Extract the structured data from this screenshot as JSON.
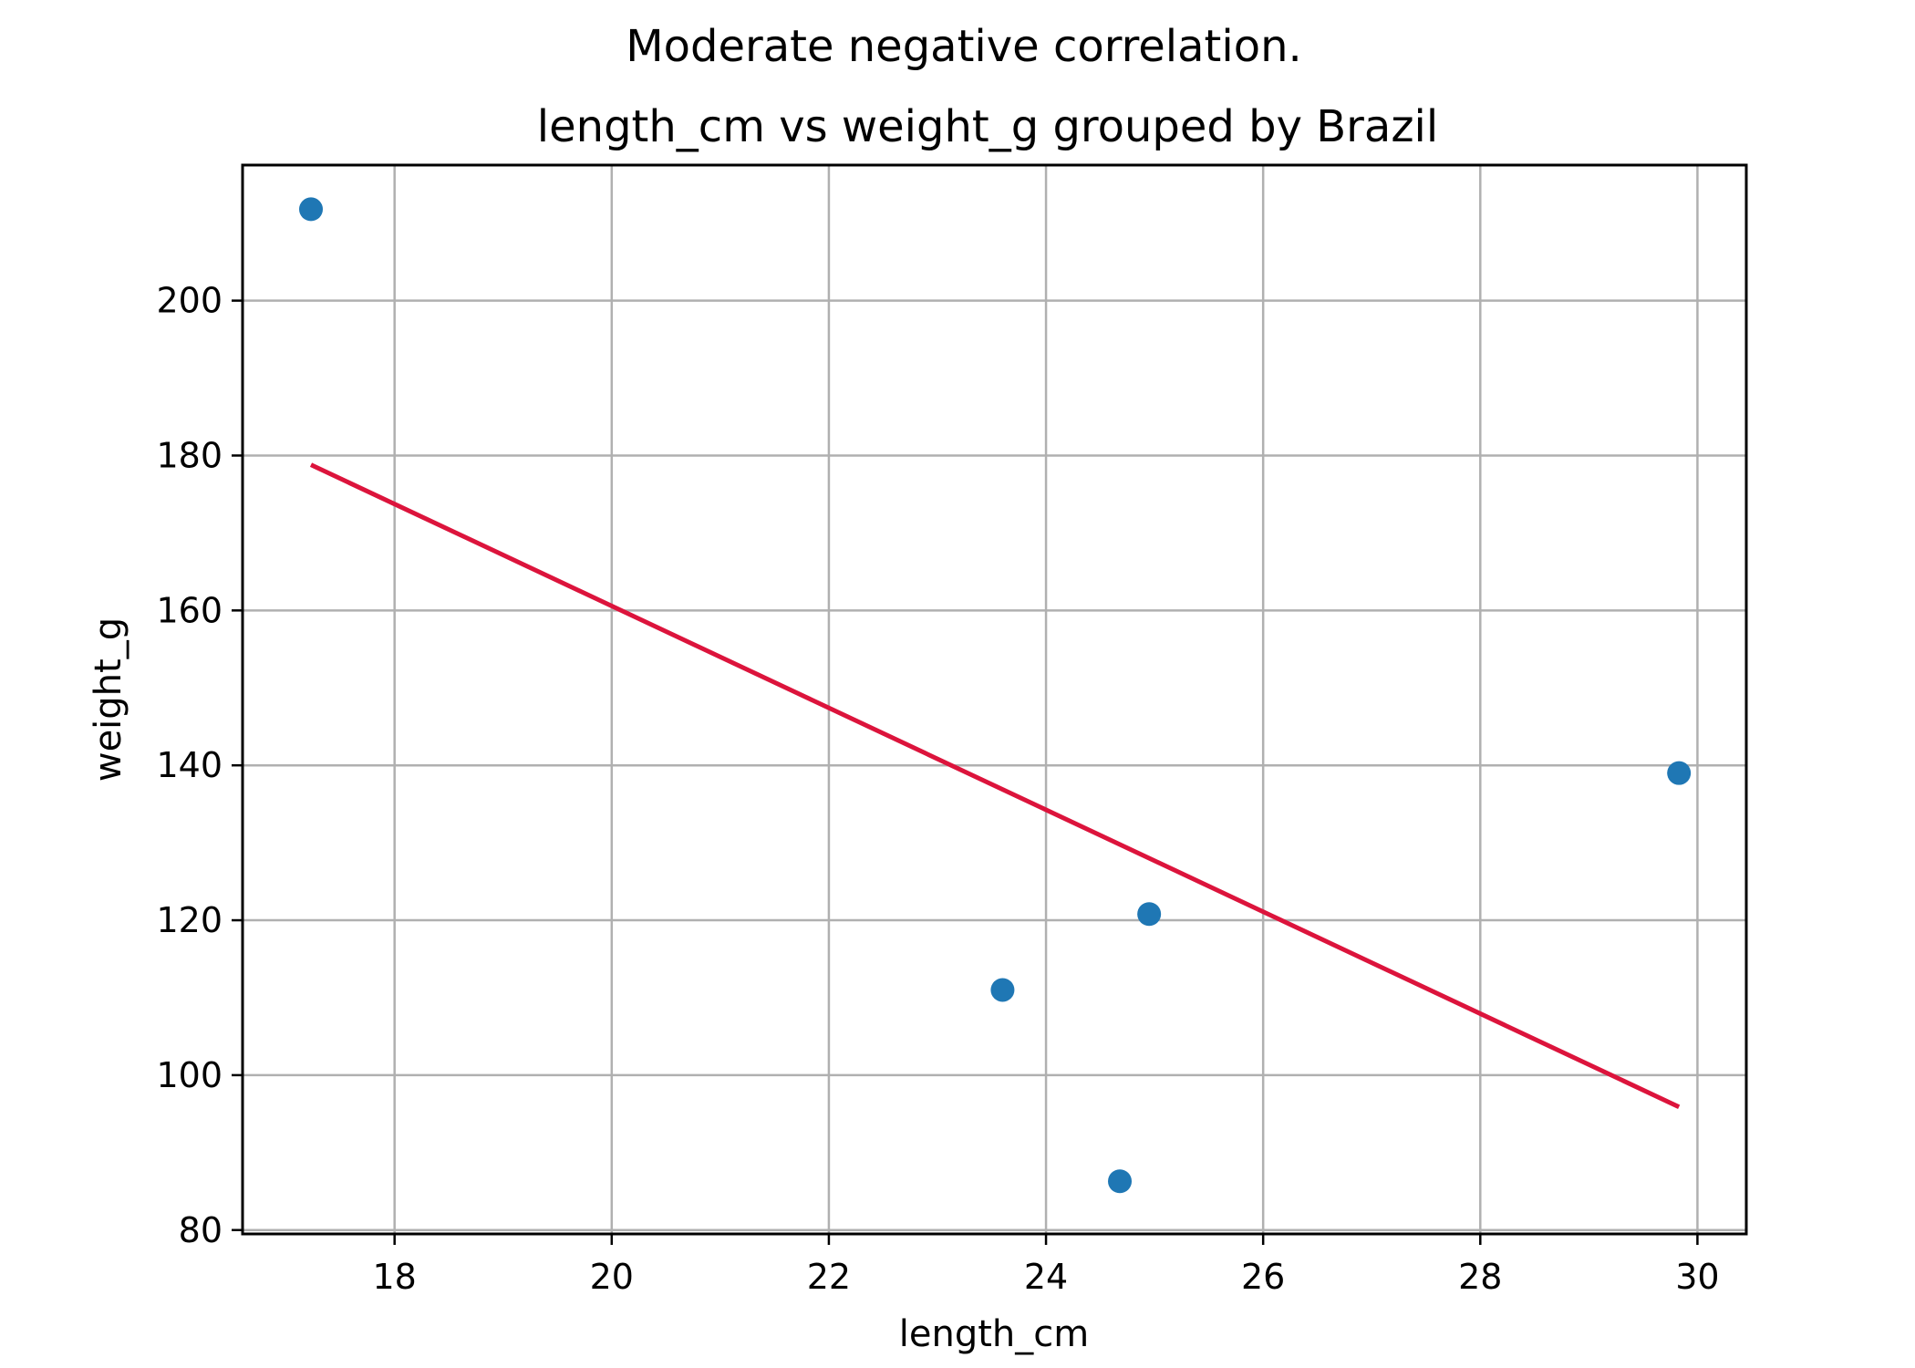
{
  "chart_data": {
    "type": "scatter",
    "suptitle": "Moderate negative correlation.",
    "title": "length_cm vs weight_g grouped by Brazil",
    "xlabel": "length_cm",
    "ylabel": "weight_g",
    "xlim": [
      16.6,
      30.45
    ],
    "ylim": [
      79.5,
      217.5
    ],
    "xticks": [
      18,
      20,
      22,
      24,
      26,
      28,
      30
    ],
    "yticks": [
      80,
      100,
      120,
      140,
      160,
      180,
      200
    ],
    "grid": true,
    "series": [
      {
        "kind": "points",
        "color": "#1f77b4",
        "points": [
          {
            "x": 17.23,
            "y": 211.8
          },
          {
            "x": 23.6,
            "y": 111.0
          },
          {
            "x": 24.68,
            "y": 86.3
          },
          {
            "x": 24.95,
            "y": 120.8
          },
          {
            "x": 29.83,
            "y": 139.0
          }
        ]
      },
      {
        "kind": "trendline",
        "color": "#dc143c",
        "points": [
          {
            "x": 17.23,
            "y": 178.8
          },
          {
            "x": 29.83,
            "y": 95.9
          }
        ]
      }
    ]
  }
}
